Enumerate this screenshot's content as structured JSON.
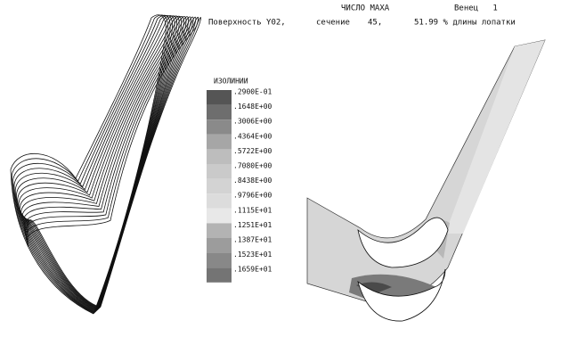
{
  "header": {
    "title": "ЧИСЛО МАХА",
    "stage": "Венец   1",
    "surface": "Поверхность Y02,",
    "section_label": "сечение",
    "section": "45,",
    "span": "51.99 % длины лопатки"
  },
  "legend": {
    "title": "ИЗОЛИНИИ",
    "levels": [
      {
        "label": ".2900E-01",
        "color": "#555555"
      },
      {
        "label": ".1648E+00",
        "color": "#6e6e6e"
      },
      {
        "label": ".3006E+00",
        "color": "#8a8a8a"
      },
      {
        "label": ".4364E+00",
        "color": "#a6a6a6"
      },
      {
        "label": ".5722E+00",
        "color": "#bdbdbd"
      },
      {
        "label": ".7080E+00",
        "color": "#cacaca"
      },
      {
        "label": ".8438E+00",
        "color": "#d3d3d3"
      },
      {
        "label": ".9796E+00",
        "color": "#dcdcdc"
      },
      {
        "label": ".1115E+01",
        "color": "#e8e8e8"
      },
      {
        "label": ".1251E+01",
        "color": "#b3b3b3"
      },
      {
        "label": ".1387E+01",
        "color": "#9c9c9c"
      },
      {
        "label": ".1523E+01",
        "color": "#888888"
      },
      {
        "label": ".1659E+01",
        "color": "#747474"
      }
    ]
  }
}
